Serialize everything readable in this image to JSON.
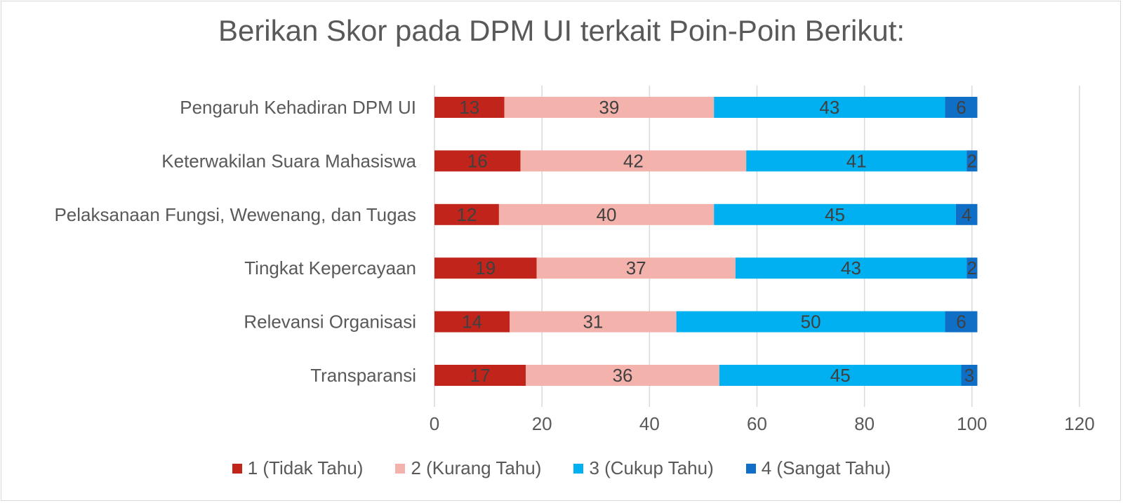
{
  "chart_data": {
    "type": "bar",
    "orientation": "horizontal",
    "stacked": true,
    "title": "Berikan Skor pada DPM UI terkait Poin-Poin Berikut:",
    "categories": [
      "Pengaruh Kehadiran DPM UI",
      "Keterwakilan Suara Mahasiswa",
      "Pelaksanaan Fungsi, Wewenang, dan Tugas",
      "Tingkat Kepercayaan",
      "Relevansi Organisasi",
      "Transparansi"
    ],
    "series": [
      {
        "name": "1 (Tidak Tahu)",
        "color": "#c0241a",
        "values": [
          13,
          16,
          12,
          19,
          14,
          17
        ]
      },
      {
        "name": "2 (Kurang Tahu)",
        "color": "#f4b2ad",
        "values": [
          39,
          42,
          40,
          37,
          31,
          36
        ]
      },
      {
        "name": "3 (Cukup Tahu)",
        "color": "#00b0f0",
        "values": [
          43,
          41,
          45,
          43,
          50,
          45
        ]
      },
      {
        "name": "4 (Sangat Tahu)",
        "color": "#0f6fc6",
        "values": [
          6,
          2,
          4,
          2,
          6,
          3
        ]
      }
    ],
    "xlim": [
      0,
      120
    ],
    "xticks": [
      "0",
      "20",
      "40",
      "60",
      "80",
      "100",
      "120"
    ],
    "grid": "vertical",
    "data_labels": true,
    "legend_position": "bottom"
  }
}
